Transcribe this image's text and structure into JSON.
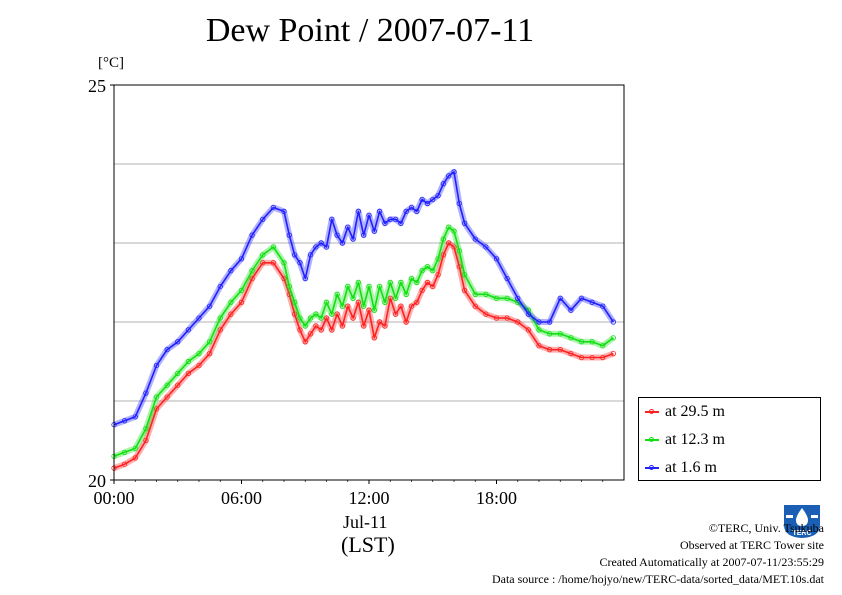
{
  "chart_data": {
    "type": "line",
    "title": "Dew Point / 2007-07-11",
    "unit_label": "[°C]",
    "ylim": [
      20,
      25
    ],
    "y_ticks": [
      {
        "value": 20,
        "label": "20"
      },
      {
        "value": 25,
        "label": "25"
      }
    ],
    "y_grid": [
      21,
      22,
      23,
      24
    ],
    "xlim": [
      0,
      24
    ],
    "x_ticks": [
      {
        "hour": 0,
        "label": "00:00"
      },
      {
        "hour": 6,
        "label": "06:00"
      },
      {
        "hour": 12,
        "label": "12:00"
      },
      {
        "hour": 18,
        "label": "18:00"
      }
    ],
    "x_date_label": "Jul-11",
    "x_axis_label": "(LST)",
    "legend_position": "right",
    "series": [
      {
        "name": "at 29.5 m",
        "color": "#ff2020",
        "x": [
          0,
          0.5,
          1,
          1.5,
          2,
          2.5,
          3,
          3.5,
          4,
          4.5,
          5,
          5.5,
          6,
          6.5,
          7,
          7.5,
          8,
          8.25,
          8.5,
          8.75,
          9,
          9.25,
          9.5,
          9.75,
          10,
          10.25,
          10.5,
          10.75,
          11,
          11.25,
          11.5,
          11.75,
          12,
          12.25,
          12.5,
          12.75,
          13,
          13.25,
          13.5,
          13.75,
          14,
          14.25,
          14.5,
          14.75,
          15,
          15.25,
          15.5,
          15.75,
          16,
          16.25,
          16.5,
          17,
          17.5,
          18,
          18.5,
          19,
          19.5,
          20,
          20.5,
          21,
          21.5,
          22,
          22.5,
          23,
          23.5
        ],
        "y": [
          20.15,
          20.2,
          20.28,
          20.5,
          20.9,
          21.05,
          21.2,
          21.35,
          21.45,
          21.6,
          21.9,
          22.1,
          22.25,
          22.55,
          22.75,
          22.75,
          22.55,
          22.35,
          22.1,
          21.9,
          21.75,
          21.85,
          21.95,
          21.9,
          22.05,
          21.9,
          22.1,
          21.95,
          22.2,
          22.05,
          22.25,
          21.95,
          22.15,
          21.8,
          22.0,
          21.95,
          22.3,
          22.1,
          22.2,
          22.0,
          22.2,
          22.25,
          22.4,
          22.5,
          22.45,
          22.6,
          22.85,
          23.0,
          22.95,
          22.7,
          22.4,
          22.2,
          22.1,
          22.05,
          22.05,
          22.0,
          21.9,
          21.7,
          21.65,
          21.65,
          21.6,
          21.55,
          21.55,
          21.55,
          21.6
        ]
      },
      {
        "name": "at 12.3 m",
        "color": "#10e010",
        "x": [
          0,
          0.5,
          1,
          1.5,
          2,
          2.5,
          3,
          3.5,
          4,
          4.5,
          5,
          5.5,
          6,
          6.5,
          7,
          7.5,
          8,
          8.25,
          8.5,
          8.75,
          9,
          9.25,
          9.5,
          9.75,
          10,
          10.25,
          10.5,
          10.75,
          11,
          11.25,
          11.5,
          11.75,
          12,
          12.25,
          12.5,
          12.75,
          13,
          13.25,
          13.5,
          13.75,
          14,
          14.25,
          14.5,
          14.75,
          15,
          15.25,
          15.5,
          15.75,
          16,
          16.25,
          16.5,
          17,
          17.5,
          18,
          18.5,
          19,
          19.5,
          20,
          20.5,
          21,
          21.5,
          22,
          22.5,
          23,
          23.5
        ],
        "y": [
          20.3,
          20.35,
          20.4,
          20.65,
          21.05,
          21.2,
          21.35,
          21.5,
          21.6,
          21.75,
          22.05,
          22.25,
          22.4,
          22.65,
          22.85,
          22.95,
          22.75,
          22.45,
          22.25,
          22.05,
          21.95,
          22.05,
          22.1,
          22.05,
          22.25,
          22.1,
          22.35,
          22.2,
          22.45,
          22.3,
          22.5,
          22.2,
          22.45,
          22.15,
          22.45,
          22.25,
          22.5,
          22.3,
          22.5,
          22.35,
          22.55,
          22.5,
          22.65,
          22.7,
          22.65,
          22.8,
          23.05,
          23.2,
          23.15,
          22.9,
          22.6,
          22.35,
          22.35,
          22.3,
          22.3,
          22.25,
          22.15,
          21.9,
          21.85,
          21.85,
          21.8,
          21.75,
          21.75,
          21.7,
          21.8
        ]
      },
      {
        "name": "at 1.6 m",
        "color": "#2020ff",
        "x": [
          0,
          0.5,
          1,
          1.5,
          2,
          2.5,
          3,
          3.5,
          4,
          4.5,
          5,
          5.5,
          6,
          6.5,
          7,
          7.5,
          8,
          8.25,
          8.5,
          8.75,
          9,
          9.25,
          9.5,
          9.75,
          10,
          10.25,
          10.5,
          10.75,
          11,
          11.25,
          11.5,
          11.75,
          12,
          12.25,
          12.5,
          12.75,
          13,
          13.25,
          13.5,
          13.75,
          14,
          14.25,
          14.5,
          14.75,
          15,
          15.25,
          15.5,
          15.75,
          16,
          16.25,
          16.5,
          17,
          17.5,
          18,
          18.5,
          19,
          19.5,
          20,
          20.5,
          21,
          21.5,
          22,
          22.5,
          23,
          23.5
        ],
        "y": [
          20.7,
          20.75,
          20.8,
          21.1,
          21.45,
          21.65,
          21.75,
          21.9,
          22.05,
          22.2,
          22.45,
          22.65,
          22.8,
          23.1,
          23.3,
          23.45,
          23.4,
          23.1,
          22.85,
          22.75,
          22.55,
          22.85,
          22.95,
          23.0,
          22.95,
          23.3,
          23.1,
          23.0,
          23.2,
          23.05,
          23.4,
          23.1,
          23.35,
          23.15,
          23.4,
          23.25,
          23.3,
          23.3,
          23.25,
          23.4,
          23.45,
          23.4,
          23.55,
          23.5,
          23.55,
          23.6,
          23.75,
          23.85,
          23.9,
          23.5,
          23.25,
          23.05,
          22.95,
          22.8,
          22.55,
          22.3,
          22.1,
          22.0,
          22.0,
          22.3,
          22.15,
          22.3,
          22.25,
          22.2,
          22.0
        ]
      }
    ]
  },
  "credits": {
    "line1": "©TERC, Univ. Tsukuba",
    "line2": "Observed at TERC Tower site",
    "line3": "Created Automatically at 2007-07-11/23:55:29",
    "line4": "Data source : /home/hojyo/new/TERC-data/sorted_data/MET.10s.dat"
  },
  "logo": {
    "text": "TERC",
    "color": "#1a5fb4"
  }
}
